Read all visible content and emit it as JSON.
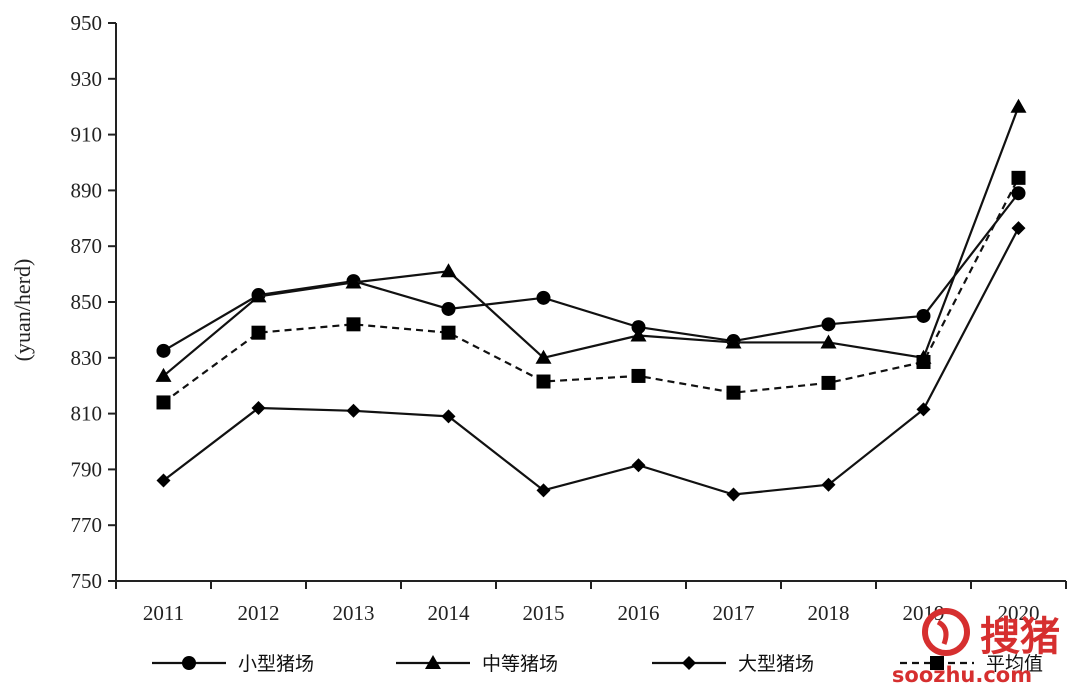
{
  "chart_data": {
    "type": "line",
    "ylabel": "(yuan/herd)",
    "ylim": [
      750,
      950
    ],
    "yticks": [
      750,
      770,
      790,
      810,
      830,
      850,
      870,
      890,
      910,
      930,
      950
    ],
    "categories": [
      "2011",
      "2012",
      "2013",
      "2014",
      "2015",
      "2016",
      "2017",
      "2018",
      "2019",
      "2020"
    ],
    "grid": false,
    "legend_position": "bottom",
    "series": [
      {
        "name": "小型猪场",
        "marker": "circle",
        "dash": "solid",
        "values": [
          832.5,
          852.5,
          857.5,
          847.5,
          851.5,
          841,
          836,
          842,
          845,
          889
        ]
      },
      {
        "name": "中等猪场",
        "marker": "triangle",
        "dash": "solid",
        "values": [
          823.5,
          852,
          857,
          861,
          830,
          838,
          835.5,
          835.5,
          830,
          920
        ]
      },
      {
        "name": "大型猪场",
        "marker": "diamond",
        "dash": "solid",
        "values": [
          786,
          812,
          811,
          809,
          782.5,
          791.5,
          781,
          784.5,
          811.5,
          876.5
        ]
      },
      {
        "name": "平均值",
        "marker": "square",
        "dash": "dashed",
        "values": [
          814,
          839,
          842,
          839,
          821.5,
          823.5,
          817.5,
          821,
          828.5,
          894.5
        ]
      }
    ]
  },
  "watermark": {
    "brand_cn": "搜猪",
    "brand_url": "soozhu.com",
    "color": "#d62f2f"
  }
}
